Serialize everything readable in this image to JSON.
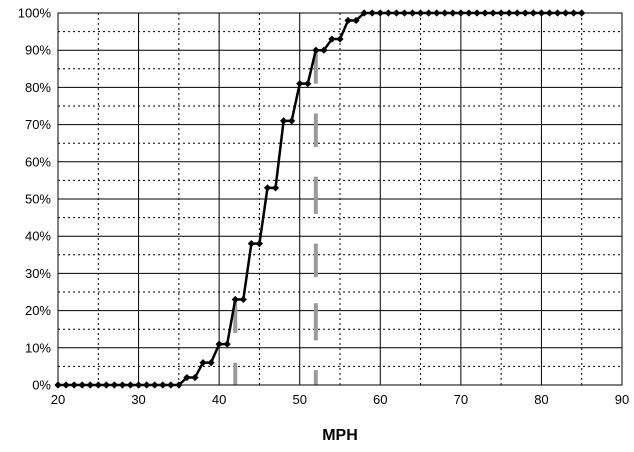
{
  "chart_data": {
    "type": "line",
    "title": "",
    "xlabel": "MPH",
    "ylabel": "",
    "xlim": [
      20,
      90
    ],
    "ylim": [
      0,
      100
    ],
    "x_ticks": [
      "20",
      "30",
      "40",
      "50",
      "60",
      "70",
      "80",
      "90"
    ],
    "y_ticks": [
      "0%",
      "10%",
      "20%",
      "30%",
      "40%",
      "50%",
      "60%",
      "70%",
      "80%",
      "90%",
      "100%"
    ],
    "grid": true,
    "legend": "none",
    "colors": {
      "line": "#000000",
      "marker": "#000000",
      "grid_major": "#000000",
      "grid_minor": "#000000",
      "highlight": "#9a9a9a"
    },
    "series": [
      {
        "x": [
          20,
          21,
          22,
          23,
          24,
          25,
          26,
          27,
          28,
          29,
          30,
          31,
          32,
          33,
          34,
          35,
          36,
          37,
          38,
          39,
          40,
          41,
          42,
          43,
          44,
          45,
          46,
          47,
          48,
          49,
          50,
          51,
          52,
          53,
          54,
          55,
          56,
          57,
          58,
          59,
          60,
          61,
          62,
          63,
          64,
          65,
          66,
          67,
          68,
          69,
          70,
          71,
          72,
          73,
          74,
          75,
          76,
          77,
          78,
          79,
          80,
          81,
          82,
          83,
          84,
          85
        ],
        "y": [
          0,
          0,
          0,
          0,
          0,
          0,
          0,
          0,
          0,
          0,
          0,
          0,
          0,
          0,
          0,
          0,
          2,
          2,
          6,
          6,
          11,
          11,
          23,
          23,
          38,
          38,
          53,
          53,
          71,
          71,
          81,
          81,
          90,
          90,
          93,
          93,
          98,
          98,
          100,
          100,
          100,
          100,
          100,
          100,
          100,
          100,
          100,
          100,
          100,
          100,
          100,
          100,
          100,
          100,
          100,
          100,
          100,
          100,
          100,
          100,
          100,
          100,
          100,
          100,
          100,
          100
        ]
      }
    ],
    "highlight_bands": [
      {
        "x": 42,
        "y_ranges": [
          [
            0,
            6
          ],
          [
            14,
            23
          ]
        ]
      },
      {
        "x": 52,
        "y_ranges": [
          [
            0,
            4
          ],
          [
            12,
            22
          ],
          [
            29,
            38
          ],
          [
            46,
            56
          ],
          [
            64,
            73
          ],
          [
            81,
            90
          ]
        ]
      }
    ]
  }
}
